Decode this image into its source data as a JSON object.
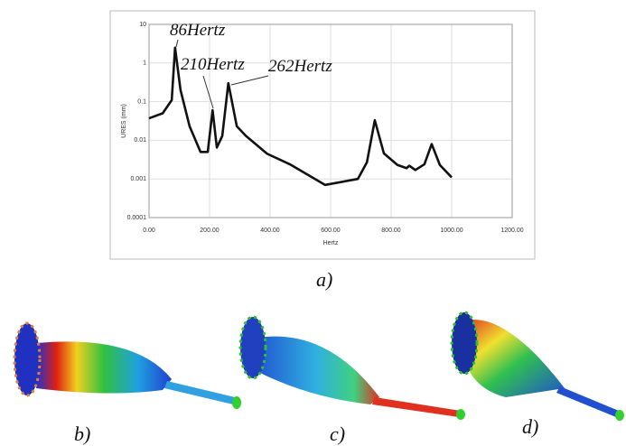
{
  "chart_data": {
    "type": "line",
    "log_y": true,
    "grid": true,
    "ylabel": "URES (mm)",
    "xlabel": "Hertz",
    "xlim": [
      0,
      1200
    ],
    "xticks": [
      {
        "value": 0,
        "label": "0.00"
      },
      {
        "value": 200,
        "label": "200.00"
      },
      {
        "value": 400,
        "label": "400.00"
      },
      {
        "value": 600,
        "label": "600.00"
      },
      {
        "value": 800,
        "label": "800.00"
      },
      {
        "value": 1000,
        "label": "1000.00"
      },
      {
        "value": 1200,
        "label": "1200.00"
      }
    ],
    "ylim": [
      0.0001,
      10
    ],
    "yticks": [
      0.0001,
      0.001,
      0.01,
      0.1,
      1,
      10
    ],
    "annotations": [
      "86Hertz",
      "210Hertz",
      "262Hertz"
    ],
    "series": [
      {
        "color": "#111111",
        "x": [
          0,
          45,
          75,
          86,
          104,
          134,
          170,
          194,
          210,
          224,
          242,
          262,
          290,
          320,
          390,
          465,
          582,
          690,
          720,
          746,
          776,
          821,
          851,
          860,
          880,
          910,
          934,
          961,
          1000
        ],
        "values": [
          0.037,
          0.05,
          0.11,
          2.5,
          0.2,
          0.023,
          0.005,
          0.005,
          0.06,
          0.0065,
          0.013,
          0.3,
          0.023,
          0.013,
          0.0045,
          0.0024,
          0.0007,
          0.001,
          0.0027,
          0.033,
          0.0046,
          0.0023,
          0.0019,
          0.0022,
          0.0017,
          0.0024,
          0.008,
          0.0023,
          0.0011
        ]
      }
    ]
  },
  "captions": [
    "a)",
    "b)",
    "c)",
    "d)"
  ]
}
